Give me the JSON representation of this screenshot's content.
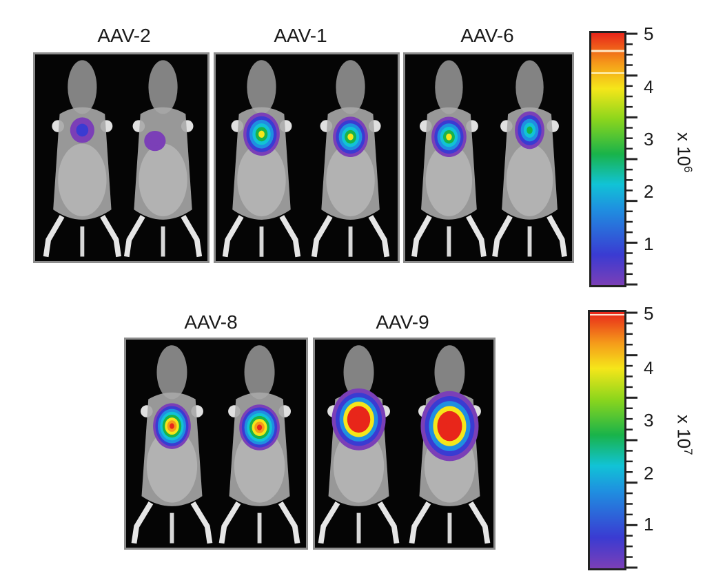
{
  "panels": [
    {
      "label": "AAV-2"
    },
    {
      "label": "AAV-1"
    },
    {
      "label": "AAV-6"
    },
    {
      "label": "AAV-8"
    },
    {
      "label": "AAV-9"
    }
  ],
  "colorbar_top": {
    "ticks": [
      "5",
      "4",
      "3",
      "2",
      "1"
    ],
    "multiplier_base": "x 10",
    "multiplier_exp": "6"
  },
  "colorbar_bottom": {
    "ticks": [
      "5",
      "4",
      "3",
      "2",
      "1"
    ],
    "multiplier_base": "x 10",
    "multiplier_exp": "7"
  },
  "colors": {
    "scale": [
      "#7b3fb7",
      "#3a3bd2",
      "#1f8fe0",
      "#11c3d6",
      "#19b34a",
      "#8dd61c",
      "#f5e61a",
      "#f59a1a",
      "#e8261a"
    ],
    "panel_border": "#8d8d8d"
  }
}
